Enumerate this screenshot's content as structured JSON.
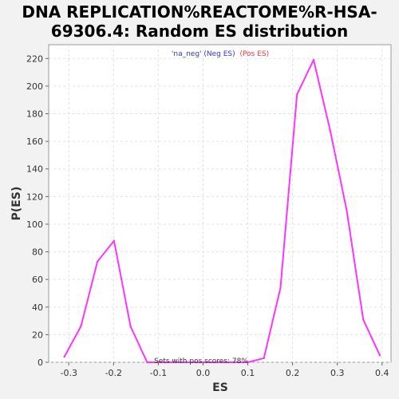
{
  "chart_data": {
    "type": "line",
    "title_lines": [
      "DNA REPLICATION%REACTOME%R-HSA-",
      "69306.4: Random ES distribution"
    ],
    "xlabel": "ES",
    "ylabel": "P(ES)",
    "xlim": [
      -0.345,
      0.42
    ],
    "ylim": [
      0,
      230
    ],
    "xticks": [
      -0.3,
      -0.2,
      -0.1,
      0.0,
      0.1,
      0.2,
      0.3,
      0.4
    ],
    "xtick_labels": [
      "-0.3",
      "-0.2",
      "-0.1",
      "0.0",
      "0.1",
      "0.2",
      "0.3",
      "0.4"
    ],
    "yticks": [
      0,
      20,
      40,
      60,
      80,
      100,
      120,
      140,
      160,
      180,
      200,
      220
    ],
    "ytick_labels": [
      "0",
      "20",
      "40",
      "60",
      "80",
      "100",
      "120",
      "140",
      "160",
      "180",
      "200",
      "220"
    ],
    "grid": true,
    "legend": {
      "placement": "top-center",
      "entries": [
        {
          "text": "'na_neg' (Neg ES)",
          "color": "#3333cc"
        },
        {
          "text": "(Pos ES)",
          "color": "#ff3333"
        }
      ]
    },
    "annotation": "Sets with pos scores: 78%",
    "series": [
      {
        "color": "#ff33ff",
        "x": [
          -0.31,
          -0.273,
          -0.236,
          -0.199,
          -0.162,
          -0.125,
          0.1,
          0.136,
          0.173,
          0.21,
          0.247,
          0.284,
          0.321,
          0.358,
          0.395
        ],
        "y": [
          4,
          26,
          73,
          88,
          26,
          0,
          0,
          3,
          54,
          194,
          219,
          168,
          110,
          31,
          5
        ]
      }
    ]
  }
}
